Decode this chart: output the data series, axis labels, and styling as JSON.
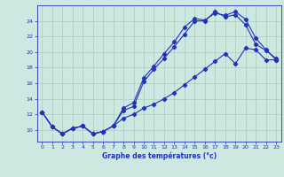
{
  "xlabel": "Graphe des températures (°c)",
  "bg_color": "#cce8e0",
  "line_color": "#2233bb",
  "grid_color": "#aaccbb",
  "xlim": [
    -0.5,
    23.5
  ],
  "ylim": [
    8.5,
    26.0
  ],
  "xticks": [
    0,
    1,
    2,
    3,
    4,
    5,
    6,
    7,
    8,
    9,
    10,
    11,
    12,
    13,
    14,
    15,
    16,
    17,
    18,
    19,
    20,
    21,
    22,
    23
  ],
  "yticks": [
    10,
    12,
    14,
    16,
    18,
    20,
    22,
    24
  ],
  "curve1_x": [
    0,
    1,
    2,
    3,
    4,
    5,
    6,
    7,
    8,
    9,
    10,
    11,
    12,
    13,
    14,
    15,
    16,
    17,
    18,
    19,
    20,
    21,
    22,
    23
  ],
  "curve1_y": [
    12.3,
    10.4,
    9.5,
    10.2,
    10.5,
    9.5,
    9.8,
    10.5,
    12.8,
    13.5,
    16.7,
    18.2,
    19.8,
    21.3,
    23.2,
    24.3,
    24.1,
    25.0,
    24.7,
    25.2,
    24.2,
    21.8,
    20.3,
    19.0
  ],
  "curve2_x": [
    0,
    1,
    2,
    3,
    4,
    5,
    6,
    7,
    8,
    9,
    10,
    11,
    12,
    13,
    14,
    15,
    16,
    17,
    18,
    19,
    20,
    21,
    22,
    23
  ],
  "curve2_y": [
    12.3,
    10.4,
    9.5,
    10.2,
    10.5,
    9.5,
    9.8,
    10.5,
    12.5,
    13.0,
    16.2,
    17.8,
    19.2,
    20.7,
    22.3,
    24.0,
    24.0,
    25.2,
    24.5,
    24.8,
    23.5,
    21.0,
    20.2,
    19.2
  ],
  "curve3_x": [
    0,
    1,
    2,
    3,
    4,
    5,
    6,
    7,
    8,
    9,
    10,
    11,
    12,
    13,
    14,
    15,
    16,
    17,
    18,
    19,
    20,
    21,
    22,
    23
  ],
  "curve3_y": [
    12.3,
    10.4,
    9.5,
    10.2,
    10.5,
    9.5,
    9.8,
    10.5,
    11.5,
    12.0,
    12.8,
    13.3,
    14.0,
    14.8,
    15.8,
    16.8,
    17.8,
    18.8,
    19.8,
    18.5,
    20.5,
    20.3,
    19.0,
    19.0
  ]
}
